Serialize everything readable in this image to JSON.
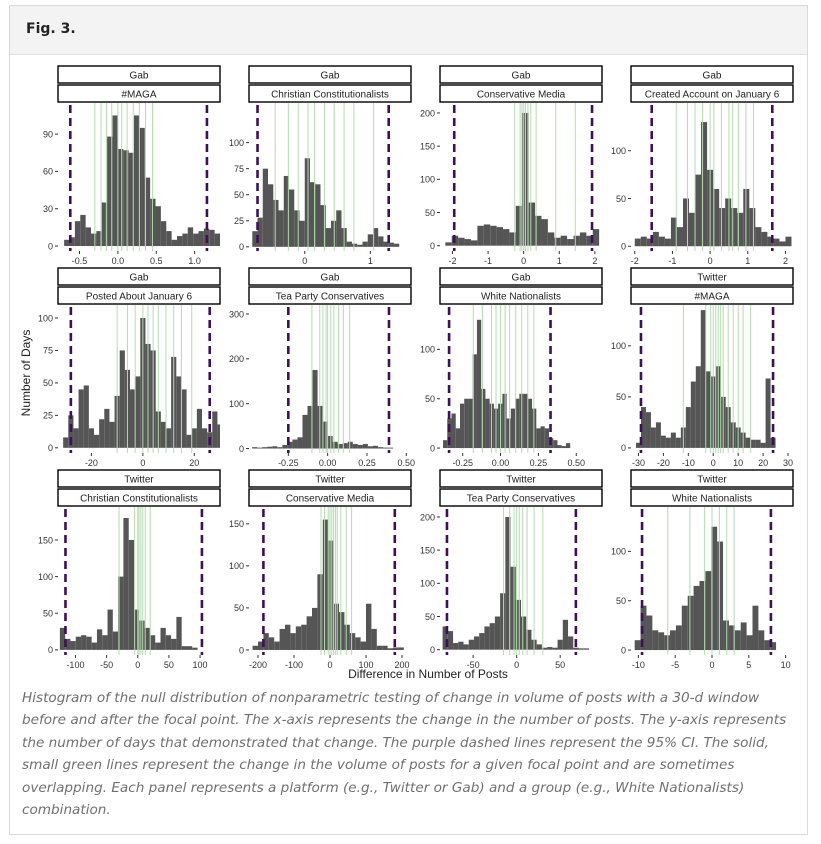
{
  "figure_label": "Fig. 3.",
  "caption": "Histogram of the null distribution of nonparametric testing of change in volume of posts with a 30-d window before and after the focal point. The x-axis represents the change in the number of posts. The y-axis represents the number of days that demonstrated that change. The purple dashed lines represent the 95% CI. The solid, small green lines represent the change in the volume of posts for a given focal point and are sometimes overlapping. Each panel represents a platform (e.g., Twitter or Gab) and a group (e.g., White Nationalists) combination.",
  "colors": {
    "bar": "#555555",
    "ci_line": "#3f0f5c",
    "green_line": "#b3dcae",
    "strip_border": "#000000"
  },
  "chart_data": {
    "type": "bar",
    "xlabel": "Difference in Number of Posts",
    "ylabel": "Number of Days",
    "grid": false,
    "panels": [
      {
        "platform": "Gab",
        "group": "#MAGA",
        "xlim": [
          -0.78,
          1.33
        ],
        "ylim": [
          -4,
          115
        ],
        "xticks": [
          -0.5,
          0.0,
          0.5,
          1.0
        ],
        "xtick_labels": [
          "-0.5",
          "0.0",
          "0.5",
          "1.0"
        ],
        "yticks": [
          0,
          30,
          60,
          90
        ],
        "ytick_labels": [
          "0",
          "30",
          "60",
          "90"
        ],
        "ci": [
          -0.62,
          1.16
        ],
        "bin_start": -0.7,
        "bin_width": 0.07,
        "counts": [
          5,
          7,
          20,
          25,
          15,
          10,
          12,
          35,
          88,
          105,
          78,
          77,
          75,
          105,
          95,
          55,
          38,
          32,
          20,
          12,
          5,
          8,
          10,
          15,
          10,
          12,
          14,
          13,
          10
        ],
        "green_lines": [
          -0.3,
          -0.22,
          -0.15,
          -0.08,
          0.0,
          0.05,
          0.12,
          0.2,
          0.28,
          0.36,
          0.45
        ]
      },
      {
        "platform": "Gab",
        "group": "Christian Constitutionalists",
        "xlim": [
          -0.85,
          1.62
        ],
        "ylim": [
          -4,
          138
        ],
        "xticks": [
          0,
          1
        ],
        "xtick_labels": [
          "0",
          "1"
        ],
        "yticks": [
          0,
          25,
          50,
          75,
          100
        ],
        "ytick_labels": [
          "0",
          "25",
          "50",
          "75",
          "100"
        ],
        "ci": [
          -0.72,
          1.28
        ],
        "bin_start": -0.8,
        "bin_width": 0.08,
        "counts": [
          15,
          28,
          75,
          60,
          45,
          35,
          68,
          55,
          35,
          25,
          85,
          62,
          60,
          40,
          18,
          25,
          35,
          18,
          5,
          3,
          2,
          5,
          12,
          18,
          10,
          5,
          4,
          3
        ],
        "green_lines": [
          -0.45,
          -0.25,
          -0.1,
          0.05,
          0.15,
          0.3,
          0.45,
          0.6,
          0.75,
          1.05
        ]
      },
      {
        "platform": "Gab",
        "group": "Conservative Media",
        "xlim": [
          -2.35,
          2.2
        ],
        "ylim": [
          -8,
          215
        ],
        "xticks": [
          -2,
          -1,
          0,
          1,
          2
        ],
        "xtick_labels": [
          "-2",
          "-1",
          "0",
          "1",
          "2"
        ],
        "yticks": [
          0,
          50,
          100,
          150,
          200
        ],
        "ytick_labels": [
          "0",
          "50",
          "100",
          "150",
          "200"
        ],
        "ci": [
          -1.95,
          1.92
        ],
        "bin_start": -2.2,
        "bin_width": 0.18,
        "counts": [
          5,
          15,
          12,
          10,
          8,
          30,
          32,
          30,
          28,
          25,
          20,
          60,
          200,
          65,
          45,
          40,
          20,
          12,
          15,
          10,
          15,
          20,
          15,
          25
        ],
        "green_lines": [
          -0.25,
          -0.1,
          -0.05,
          0.0,
          0.05,
          0.12,
          0.2,
          0.35,
          0.9,
          1.45
        ]
      },
      {
        "platform": "Gab",
        "group": "Created Account on January 6",
        "xlim": [
          -2.1,
          2.2
        ],
        "ylim": [
          -5,
          150
        ],
        "xticks": [
          -2,
          -1,
          0,
          1,
          2
        ],
        "xtick_labels": [
          "-2",
          "-1",
          "0",
          "1",
          "2"
        ],
        "yticks": [
          0,
          50,
          100
        ],
        "ytick_labels": [
          "0",
          "50",
          "100"
        ],
        "ci": [
          -1.55,
          1.65
        ],
        "bin_start": -2.0,
        "bin_width": 0.16,
        "counts": [
          8,
          10,
          8,
          15,
          10,
          8,
          30,
          20,
          50,
          35,
          75,
          130,
          80,
          60,
          40,
          50,
          40,
          35,
          60,
          40,
          20,
          15,
          10,
          8,
          5,
          10
        ],
        "green_lines": [
          -0.9,
          -0.6,
          -0.4,
          -0.2,
          0.0,
          0.1,
          0.3,
          0.5,
          0.6,
          0.75,
          0.95,
          1.15
        ]
      },
      {
        "platform": "Gab",
        "group": "Posted About January 6",
        "xlim": [
          -33,
          30
        ],
        "ylim": [
          -4,
          110
        ],
        "xticks": [
          -20,
          0,
          20
        ],
        "xtick_labels": [
          "-20",
          "0",
          "20"
        ],
        "yticks": [
          0,
          25,
          50,
          75,
          100
        ],
        "ytick_labels": [
          "0",
          "25",
          "50",
          "75",
          "100"
        ],
        "ci": [
          -28,
          26
        ],
        "bin_start": -31,
        "bin_width": 2.0,
        "counts": [
          8,
          25,
          15,
          45,
          48,
          15,
          10,
          22,
          30,
          20,
          40,
          75,
          60,
          45,
          55,
          100,
          80,
          75,
          28,
          20,
          15,
          70,
          55,
          45,
          10,
          15,
          30,
          15,
          12,
          28,
          18
        ],
        "green_lines": [
          -10,
          -6,
          -3,
          0,
          2,
          4,
          6,
          9,
          12,
          15,
          19
        ]
      },
      {
        "platform": "Gab",
        "group": "Tea Party Conservatives",
        "xlim": [
          -0.5,
          0.53
        ],
        "ylim": [
          -10,
          320
        ],
        "xticks": [
          -0.25,
          0.0,
          0.25,
          0.5
        ],
        "xtick_labels": [
          "-0.25",
          "0.00",
          "0.25",
          "0.50"
        ],
        "yticks": [
          0,
          100,
          200,
          300
        ],
        "ytick_labels": [
          "0",
          "100",
          "200",
          "300"
        ],
        "ci": [
          -0.25,
          0.39
        ],
        "bin_start": -0.48,
        "bin_width": 0.032,
        "counts": [
          3,
          2,
          3,
          4,
          5,
          3,
          8,
          15,
          20,
          25,
          75,
          95,
          175,
          95,
          60,
          28,
          15,
          10,
          12,
          15,
          10,
          8,
          10,
          5,
          6,
          3,
          2,
          2
        ],
        "green_lines": [
          -0.1,
          -0.05,
          -0.03,
          -0.01,
          0.0,
          0.02,
          0.04,
          0.07,
          0.1,
          0.14
        ]
      },
      {
        "platform": "Gab",
        "group": "White Nationalists",
        "xlim": [
          -0.4,
          0.67
        ],
        "ylim": [
          -5,
          145
        ],
        "xticks": [
          -0.25,
          0.0,
          0.25,
          0.5
        ],
        "xtick_labels": [
          "-0.25",
          "0.00",
          "0.25",
          "0.50"
        ],
        "yticks": [
          0,
          50,
          100
        ],
        "ytick_labels": [
          "0",
          "50",
          "100"
        ],
        "ci": [
          -0.34,
          0.33
        ],
        "bin_start": -0.38,
        "bin_width": 0.028,
        "counts": [
          8,
          30,
          35,
          20,
          45,
          50,
          50,
          95,
          130,
          60,
          50,
          45,
          40,
          45,
          55,
          30,
          40,
          50,
          55,
          55,
          50,
          40,
          20,
          22,
          20,
          10,
          8,
          3,
          2,
          5
        ],
        "green_lines": [
          -0.18,
          -0.12,
          -0.06,
          -0.03,
          0.0,
          0.03,
          0.06,
          0.1,
          0.14,
          0.18,
          0.22
        ]
      },
      {
        "platform": "Twitter",
        "group": "#MAGA",
        "xlim": [
          -33,
          32
        ],
        "ylim": [
          -5,
          140
        ],
        "xticks": [
          -30,
          -20,
          -10,
          0,
          10,
          20,
          30
        ],
        "xtick_labels": [
          "-30",
          "-20",
          "-10",
          "0",
          "10",
          "20",
          "30"
        ],
        "yticks": [
          0,
          50,
          100
        ],
        "ytick_labels": [
          "0",
          "50",
          "100"
        ],
        "ci": [
          -29,
          24
        ],
        "bin_start": -31,
        "bin_width": 2.0,
        "counts": [
          5,
          40,
          35,
          20,
          25,
          12,
          10,
          15,
          10,
          20,
          40,
          65,
          80,
          135,
          75,
          70,
          80,
          50,
          40,
          25,
          20,
          15,
          10,
          8,
          8,
          5,
          68,
          10
        ],
        "green_lines": [
          -12,
          -3,
          -1,
          0,
          1,
          2,
          3,
          4,
          6,
          8,
          10,
          12,
          15
        ]
      },
      {
        "platform": "Twitter",
        "group": "Christian Constitutionalists",
        "xlim": [
          -128,
          132
        ],
        "ylim": [
          -7,
          195
        ],
        "xticks": [
          -100,
          -50,
          0,
          50,
          100
        ],
        "xtick_labels": [
          "-100",
          "-50",
          "0",
          "50",
          "100"
        ],
        "yticks": [
          0,
          50,
          100,
          150
        ],
        "ytick_labels": [
          "0",
          "50",
          "100",
          "150"
        ],
        "ci": [
          -116,
          103
        ],
        "bin_start": -125,
        "bin_width": 8.5,
        "counts": [
          30,
          15,
          12,
          18,
          20,
          18,
          10,
          28,
          20,
          55,
          25,
          100,
          180,
          150,
          55,
          40,
          30,
          20,
          10,
          30,
          20,
          15,
          45,
          5,
          5,
          3
        ],
        "green_lines": [
          -30,
          -5,
          0,
          2,
          5,
          8,
          12,
          20
        ]
      },
      {
        "platform": "Twitter",
        "group": "Conservative Media",
        "xlim": [
          -225,
          225
        ],
        "ylim": [
          -6,
          170
        ],
        "xticks": [
          -200,
          -100,
          0,
          100,
          200
        ],
        "xtick_labels": [
          "-200",
          "-100",
          "0",
          "100",
          "200"
        ],
        "yticks": [
          0,
          50,
          100,
          150
        ],
        "ytick_labels": [
          "0",
          "50",
          "100",
          "150"
        ],
        "ci": [
          -185,
          180
        ],
        "bin_start": -215,
        "bin_width": 15,
        "counts": [
          5,
          10,
          20,
          15,
          10,
          25,
          30,
          20,
          28,
          30,
          40,
          50,
          90,
          155,
          130,
          55,
          45,
          30,
          20,
          15,
          10,
          55,
          25,
          5,
          5,
          2,
          3,
          3
        ],
        "green_lines": [
          -25,
          -15,
          -5,
          0,
          5,
          10,
          15,
          20,
          30,
          45,
          60
        ]
      },
      {
        "platform": "Twitter",
        "group": "Tea Party Conservatives",
        "xlim": [
          -88,
          98
        ],
        "ylim": [
          -8,
          215
        ],
        "xticks": [
          -50,
          0,
          50
        ],
        "xtick_labels": [
          "-50",
          "0",
          "50"
        ],
        "yticks": [
          0,
          50,
          100,
          150,
          200
        ],
        "ytick_labels": [
          "0",
          "50",
          "100",
          "150",
          "200"
        ],
        "ci": [
          -80,
          68
        ],
        "bin_start": -85,
        "bin_width": 6.0,
        "counts": [
          35,
          28,
          10,
          12,
          8,
          15,
          20,
          25,
          35,
          40,
          50,
          85,
          200,
          125,
          75,
          50,
          30,
          15,
          8,
          3,
          4,
          3,
          15,
          45,
          20,
          3,
          2,
          2
        ],
        "green_lines": [
          -15,
          -8,
          -3,
          0,
          3,
          7,
          12,
          20,
          30
        ]
      },
      {
        "platform": "Twitter",
        "group": "White Nationalists",
        "xlim": [
          -11,
          11
        ],
        "ylim": [
          -5,
          145
        ],
        "xticks": [
          -10,
          -5,
          0,
          5,
          10
        ],
        "xtick_labels": [
          "-10",
          "-5",
          "0",
          "5",
          "10"
        ],
        "yticks": [
          0,
          50,
          100
        ],
        "ytick_labels": [
          "0",
          "50",
          "100"
        ],
        "ci": [
          -9.5,
          8.0
        ],
        "bin_start": -10.5,
        "bin_width": 0.8,
        "counts": [
          10,
          45,
          35,
          20,
          18,
          15,
          20,
          25,
          45,
          55,
          65,
          70,
          80,
          125,
          110,
          30,
          25,
          20,
          28,
          15,
          45,
          20,
          10,
          8
        ],
        "green_lines": [
          -6,
          -3,
          -1,
          0,
          1,
          2,
          3
        ]
      }
    ]
  }
}
